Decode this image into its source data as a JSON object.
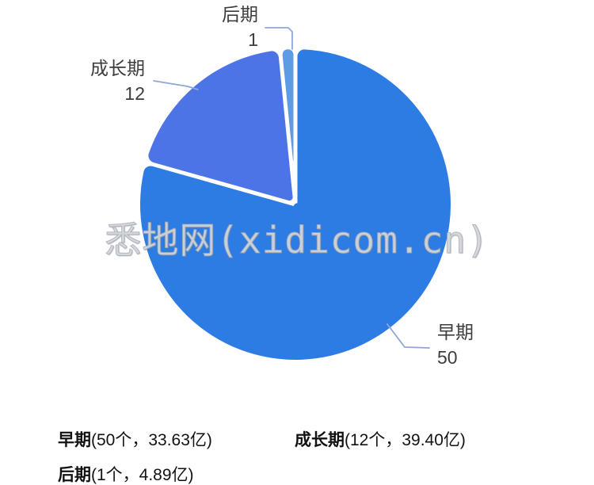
{
  "chart_data": {
    "type": "pie",
    "title": "",
    "legend_position": "none",
    "label_position": "outside",
    "start_angle_deg": 0,
    "direction": "clockwise",
    "total": 63,
    "slices": [
      {
        "key": "early",
        "name": "早期",
        "value": 50,
        "count": "50个",
        "amount": "33.63亿",
        "color": "#2C7CE4"
      },
      {
        "key": "growth",
        "name": "成长期",
        "value": 12,
        "count": "12个",
        "amount": "39.40亿",
        "color": "#4C74E6"
      },
      {
        "key": "late",
        "name": "后期",
        "value": 1,
        "count": "1个",
        "amount": "4.89亿",
        "color": "#5E9BE5"
      }
    ]
  },
  "callouts": {
    "late": {
      "name": "后期",
      "value": "1"
    },
    "growth": {
      "name": "成长期",
      "value": "12"
    },
    "early": {
      "name": "早期",
      "value": "50"
    }
  },
  "footer": {
    "early": {
      "name": "早期",
      "detail": "(50个，33.63亿)"
    },
    "growth": {
      "name": "成长期",
      "detail": "(12个，39.40亿)"
    },
    "late": {
      "name": "后期",
      "detail": "(1个，4.89亿)"
    }
  },
  "watermark": {
    "text": "悉地网(xidicom.cn)"
  },
  "colors": {
    "background": "#FFFFFF",
    "leader_line": "#8EA6D8",
    "label_text": "#3D3D3D",
    "footer_text": "#121212"
  }
}
